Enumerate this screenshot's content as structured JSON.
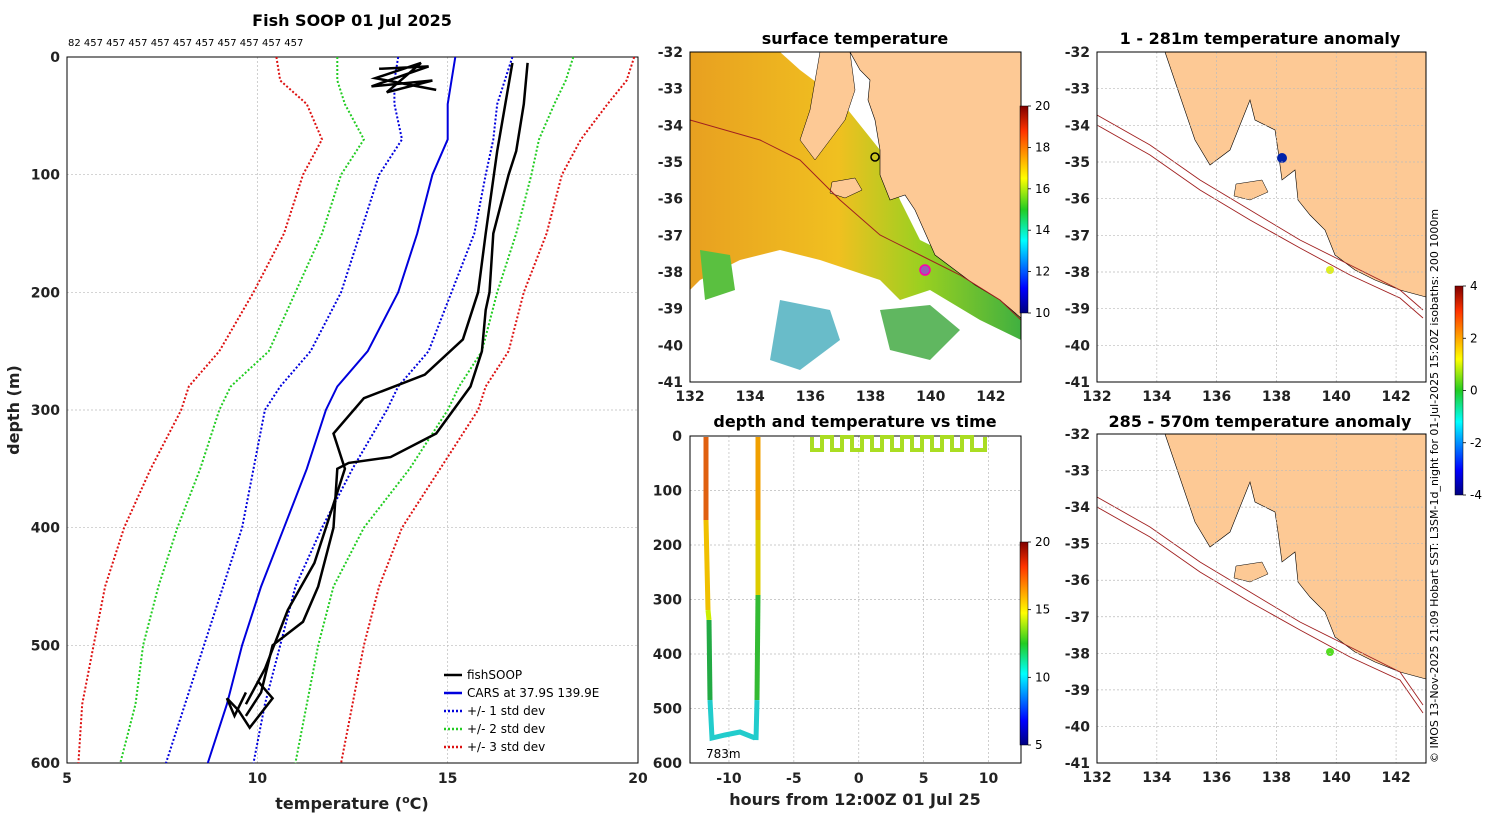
{
  "chart_data": [
    {
      "type": "line",
      "title": "Fish SOOP 01 Jul 2025",
      "counts_label": "82 457 457 457 457 457 457 457 457 457 457",
      "xlabel": "temperature (°C)",
      "ylabel": "depth (m)",
      "xlim": [
        5,
        20
      ],
      "ylim": [
        600,
        0
      ],
      "xticks": [
        "5",
        "10",
        "15",
        "20"
      ],
      "yticks": [
        "0",
        "100",
        "200",
        "300",
        "400",
        "500",
        "600"
      ],
      "legend": [
        "fishSOOP",
        "CARS at 37.9S 139.9E",
        "+/- 1 std dev",
        "+/- 2 std dev",
        "+/- 3 std dev"
      ],
      "legend_position": "bottom-right",
      "colors": {
        "fish": "#000000",
        "cars": "#0000dd",
        "sd1": "#0000dd",
        "sd2": "#22cc22",
        "sd3": "#dd1111"
      },
      "series": {
        "depth": [
          0,
          20,
          40,
          70,
          100,
          150,
          200,
          250,
          280,
          300,
          350,
          400,
          450,
          500,
          550,
          600
        ],
        "cars": [
          15.2,
          15.1,
          15.0,
          15.0,
          14.6,
          14.2,
          13.7,
          12.9,
          12.1,
          11.8,
          11.3,
          10.7,
          10.1,
          9.6,
          9.2,
          8.7
        ],
        "cars_plus_1sd": [
          16.7,
          16.5,
          16.3,
          16.2,
          16.0,
          15.7,
          15.1,
          14.5,
          13.7,
          13.4,
          12.5,
          11.7,
          11.0,
          10.6,
          10.2,
          9.9
        ],
        "cars_minus_1sd": [
          13.7,
          13.6,
          13.6,
          13.8,
          13.2,
          12.7,
          12.2,
          11.4,
          10.6,
          10.2,
          9.9,
          9.6,
          9.1,
          8.6,
          8.1,
          7.6
        ],
        "cars_plus_2sd": [
          18.3,
          18.1,
          17.8,
          17.4,
          17.2,
          16.8,
          16.3,
          15.9,
          15.3,
          15.0,
          14.0,
          12.8,
          12.0,
          11.6,
          11.3,
          11.0
        ],
        "cars_minus_2sd": [
          12.1,
          12.1,
          12.3,
          12.8,
          12.2,
          11.7,
          11.0,
          10.3,
          9.3,
          9.0,
          8.5,
          7.9,
          7.4,
          7.0,
          6.8,
          6.4
        ],
        "cars_plus_3sd": [
          19.9,
          19.7,
          19.2,
          18.5,
          18.0,
          17.6,
          17.0,
          16.6,
          16.0,
          15.8,
          14.8,
          13.8,
          13.2,
          12.8,
          12.5,
          12.2
        ],
        "cars_minus_3sd": [
          10.5,
          10.6,
          11.3,
          11.7,
          11.2,
          10.7,
          9.9,
          9.0,
          8.2,
          8.0,
          7.2,
          6.5,
          6.0,
          5.7,
          5.4,
          5.3
        ],
        "fishsoop_down": {
          "t": [
            17.1,
            17.0,
            16.8,
            16.6,
            16.2,
            16.1,
            16.0,
            15.9,
            15.6,
            14.7,
            13.5,
            12.4,
            12.1,
            12.0,
            11.6,
            11.2,
            10.4,
            10.1,
            9.7
          ],
          "d": [
            5,
            40,
            80,
            100,
            150,
            200,
            215,
            250,
            280,
            320,
            340,
            345,
            350,
            400,
            450,
            480,
            500,
            540,
            560
          ]
        },
        "fishsoop_up": {
          "t": [
            16.7,
            16.3,
            16.0,
            15.8,
            15.4,
            14.4,
            12.8,
            12.0,
            12.3,
            11.8,
            11.5,
            10.8,
            10.2,
            9.7
          ],
          "d": [
            5,
            80,
            150,
            200,
            240,
            270,
            290,
            320,
            350,
            400,
            430,
            470,
            520,
            550
          ]
        }
      }
    },
    {
      "type": "heatmap",
      "title": "surface temperature",
      "xlim": [
        132,
        143
      ],
      "ylim": [
        -41,
        -32
      ],
      "xticks": [
        "132",
        "134",
        "136",
        "138",
        "140",
        "142"
      ],
      "yticks": [
        "-32",
        "-33",
        "-34",
        "-35",
        "-36",
        "-37",
        "-38",
        "-39",
        "-40",
        "-41"
      ],
      "colorbar_range": [
        10,
        20
      ],
      "colorbar_ticks": [
        "20",
        "18",
        "16",
        "14",
        "12",
        "10"
      ]
    },
    {
      "type": "scatter",
      "title": "depth and temperature vs time",
      "xlabel": "hours from 12:00Z 01 Jul 25",
      "xlim": [
        -13,
        12.5
      ],
      "ylim": [
        600,
        0
      ],
      "xticks": [
        "-10",
        "-5",
        "0",
        "5",
        "10"
      ],
      "yticks": [
        "0",
        "100",
        "200",
        "300",
        "400",
        "500",
        "600"
      ],
      "annotation": "783m",
      "colorbar_range": [
        5,
        20
      ],
      "colorbar_ticks": [
        "20",
        "15",
        "10",
        "5"
      ]
    },
    {
      "type": "heatmap",
      "title": "1 - 281m temperature anomaly",
      "xlim": [
        132,
        143
      ],
      "ylim": [
        -41,
        -32
      ],
      "xticks": [
        "132",
        "134",
        "136",
        "138",
        "140",
        "142"
      ],
      "yticks": [
        "-32",
        "-33",
        "-34",
        "-35",
        "-36",
        "-37",
        "-38",
        "-39",
        "-40",
        "-41"
      ]
    },
    {
      "type": "heatmap",
      "title": "285 - 570m temperature anomaly",
      "xlim": [
        132,
        143
      ],
      "ylim": [
        -41,
        -32
      ],
      "xticks": [
        "132",
        "134",
        "136",
        "138",
        "140",
        "142"
      ],
      "yticks": [
        "-32",
        "-33",
        "-34",
        "-35",
        "-36",
        "-37",
        "-38",
        "-39",
        "-40",
        "-41"
      ],
      "colorbar_range": [
        -4,
        4
      ],
      "colorbar_ticks": [
        "4",
        "2",
        "0",
        "-2",
        "-4"
      ]
    }
  ],
  "footer_text": "© IMOS 13-Nov-2025 21:09 Hobart SST: L3SM-1d_night for 01-Jul-2025 15:20Z isobaths: 200  1000m"
}
